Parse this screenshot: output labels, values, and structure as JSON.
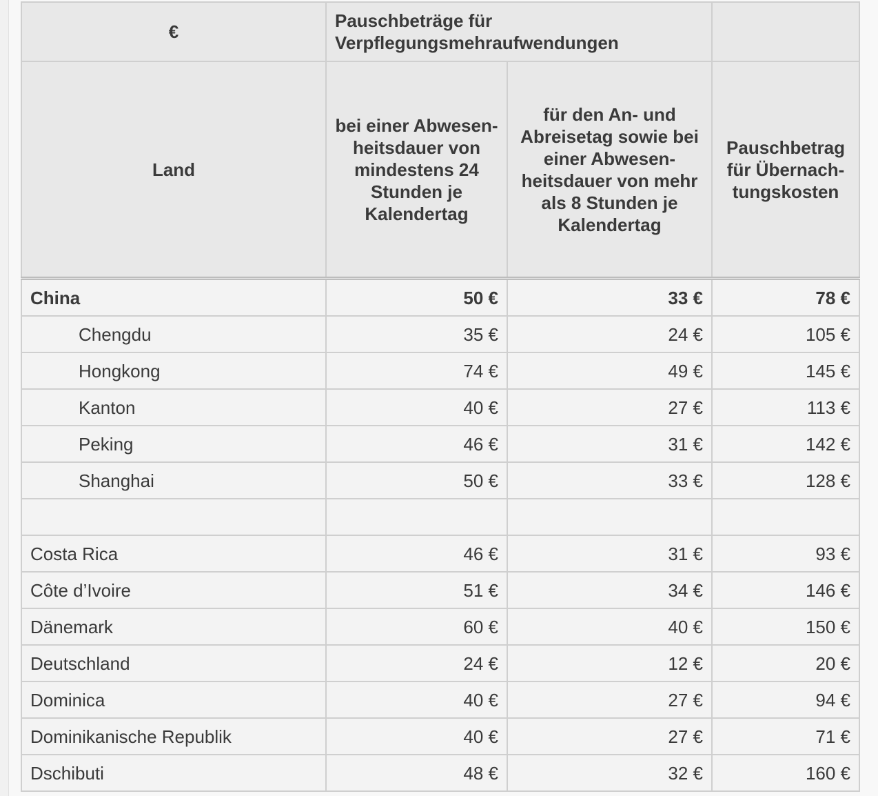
{
  "header": {
    "currency": "€",
    "group_title": "Pauschbeträge für Verpflegungsmehraufwendungen",
    "land": "Land",
    "col1": "bei einer Abwesen-heitsdauer von mindestens 24 Stunden je Kalendertag",
    "col2": "für den An- und Abreisetag sowie bei einer Abwesen-heitsdauer von mehr als 8 Stunden je Kalendertag",
    "col3": "Pauschbetrag für Übernach-tungskosten"
  },
  "rows": [
    {
      "land": "China",
      "v1": "50 €",
      "v2": "33 €",
      "v3": "78 €"
    },
    {
      "land": "Chengdu",
      "v1": "35 €",
      "v2": "24 €",
      "v3": "105 €"
    },
    {
      "land": "Hongkong",
      "v1": "74 €",
      "v2": "49 €",
      "v3": "145 €"
    },
    {
      "land": "Kanton",
      "v1": "40 €",
      "v2": "27 €",
      "v3": "113 €"
    },
    {
      "land": "Peking",
      "v1": "46 €",
      "v2": "31 €",
      "v3": "142 €"
    },
    {
      "land": "Shanghai",
      "v1": "50 €",
      "v2": "33 €",
      "v3": "128 €"
    },
    {
      "land": "",
      "v1": "",
      "v2": "",
      "v3": ""
    },
    {
      "land": "Costa Rica",
      "v1": "46 €",
      "v2": "31 €",
      "v3": "93 €"
    },
    {
      "land": "Côte d’Ivoire",
      "v1": "51 €",
      "v2": "34 €",
      "v3": "146 €"
    },
    {
      "land": "Dänemark",
      "v1": "60 €",
      "v2": "40 €",
      "v3": "150 €"
    },
    {
      "land": "Deutschland",
      "v1": "24 €",
      "v2": "12 €",
      "v3": "20 €"
    },
    {
      "land": "Dominica",
      "v1": "40 €",
      "v2": "27 €",
      "v3": "94 €"
    },
    {
      "land": "Dominikanische Republik",
      "v1": "40 €",
      "v2": "27 €",
      "v3": "71 €"
    },
    {
      "land": "Dschibuti",
      "v1": "48 €",
      "v2": "32 €",
      "v3": "160 €"
    }
  ]
}
